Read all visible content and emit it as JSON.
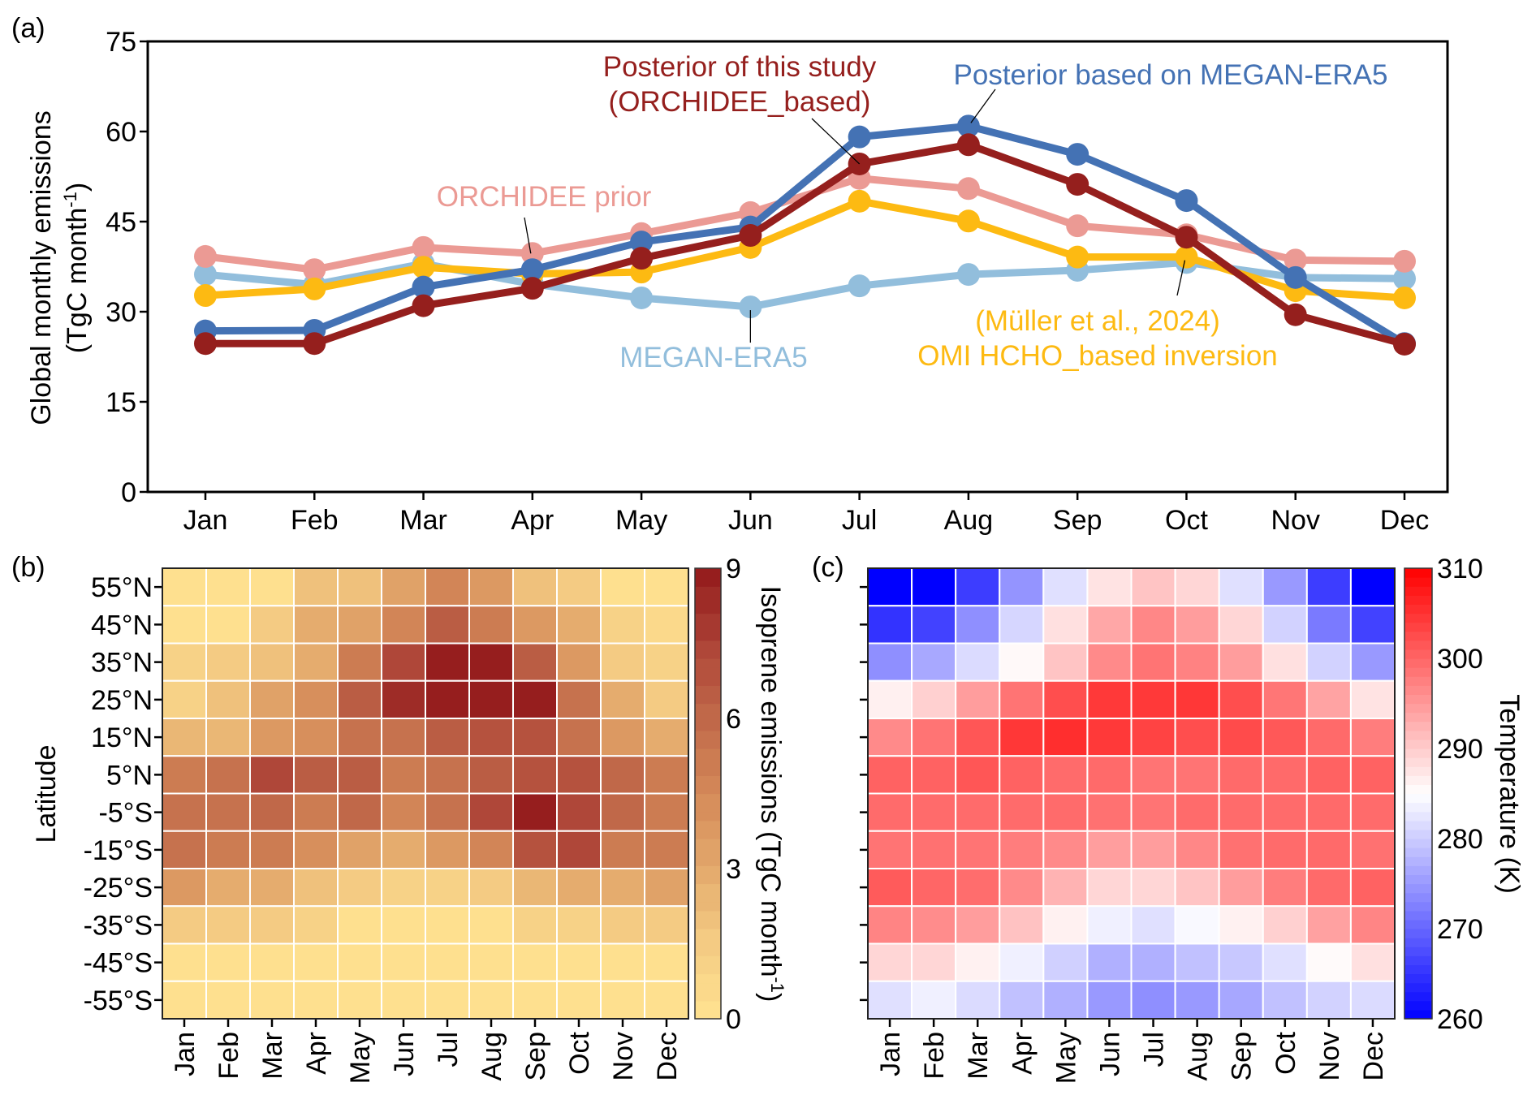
{
  "figure": {
    "panels": [
      "(a)",
      "(b)",
      "(c)"
    ]
  },
  "chart_data": [
    {
      "id": "a",
      "type": "line",
      "panel_label": "(a)",
      "title": "",
      "xlabel": "",
      "ylabel_line1": "Global monthly emissions",
      "ylabel_line2_prefix": "(TgC month",
      "ylabel_line2_sup": "-1",
      "ylabel_line2_suffix": ")",
      "ylim": [
        0,
        75
      ],
      "yticks": [
        0,
        15,
        30,
        45,
        60,
        75
      ],
      "grid": false,
      "categories": [
        "Jan",
        "Feb",
        "Mar",
        "Apr",
        "May",
        "Jun",
        "Jul",
        "Aug",
        "Sep",
        "Oct",
        "Nov",
        "Dec"
      ],
      "series": [
        {
          "name": "MEGAN-ERA5",
          "color": "#92BEDC",
          "values": [
            36.2,
            34.5,
            38.0,
            34.6,
            32.3,
            30.8,
            34.3,
            36.2,
            36.9,
            38.2,
            35.7,
            35.5
          ]
        },
        {
          "name": "ORCHIDEE prior",
          "color": "#EB9A94",
          "values": [
            39.2,
            37.0,
            40.7,
            39.7,
            43.0,
            46.5,
            52.2,
            50.5,
            44.3,
            42.8,
            38.6,
            38.4
          ]
        },
        {
          "name": "OMI HCHO_based inversion (Müller et al., 2024)",
          "color": "#FDBA12",
          "values": [
            32.7,
            33.8,
            37.4,
            36.3,
            36.6,
            40.7,
            48.4,
            45.1,
            39.1,
            39.1,
            33.5,
            32.3
          ]
        },
        {
          "name": "Posterior based on MEGAN-ERA5",
          "color": "#4472B4",
          "values": [
            26.8,
            26.9,
            34.1,
            37.0,
            41.6,
            44.1,
            59.1,
            60.9,
            56.2,
            48.5,
            35.7,
            24.7
          ]
        },
        {
          "name": "Posterior of this study (ORCHIDEE_based)",
          "color": "#951F1D",
          "values": [
            24.7,
            24.7,
            31.0,
            33.9,
            38.9,
            42.7,
            54.6,
            57.8,
            51.2,
            42.4,
            29.5,
            24.6
          ]
        }
      ],
      "annotations": [
        {
          "id": "post-study-1",
          "text": "Posterior of this study",
          "color": "#951F1D",
          "series": 4,
          "month": 6
        },
        {
          "id": "post-study-2",
          "text": "(ORCHIDEE_based)",
          "color": "#951F1D"
        },
        {
          "id": "post-megan",
          "text": "Posterior based on MEGAN-ERA5",
          "color": "#4472B4",
          "series": 3,
          "month": 7
        },
        {
          "id": "orchidee-prior",
          "text": "ORCHIDEE prior",
          "color": "#EB9A94",
          "series": 1,
          "month": 3
        },
        {
          "id": "megan-era5",
          "text": "MEGAN-ERA5",
          "color": "#92BEDC",
          "series": 0,
          "month": 5
        },
        {
          "id": "muller-1",
          "text": "(Müller et al., 2024)",
          "color": "#FDBA12",
          "series": 2,
          "month": 9
        },
        {
          "id": "muller-2",
          "text": "OMI HCHO_based inversion",
          "color": "#FDBA12"
        }
      ]
    },
    {
      "id": "b",
      "type": "heatmap",
      "panel_label": "(b)",
      "title": "",
      "xlabel": "",
      "ylabel": "Latitude",
      "x": [
        "Jan",
        "Feb",
        "Mar",
        "Apr",
        "May",
        "Jun",
        "Jul",
        "Aug",
        "Sep",
        "Oct",
        "Nov",
        "Dec"
      ],
      "y": [
        "55°N",
        "45°N",
        "35°N",
        "25°N",
        "15°N",
        "5°N",
        "-5°S",
        "-15°S",
        "-25°S",
        "-35°S",
        "-45°S",
        "-55°S"
      ],
      "values": [
        [
          0.3,
          0.3,
          0.4,
          1.8,
          2.0,
          3.5,
          4.5,
          3.6,
          2.1,
          1.6,
          0.4,
          0.3
        ],
        [
          0.3,
          0.4,
          1.6,
          2.7,
          3.4,
          4.9,
          6.4,
          5.3,
          3.6,
          2.8,
          1.0,
          0.5
        ],
        [
          0.9,
          1.6,
          2.0,
          3.0,
          5.0,
          7.2,
          9.0,
          9.0,
          6.6,
          3.7,
          1.5,
          0.9
        ],
        [
          1.3,
          1.8,
          3.5,
          4.4,
          6.5,
          8.5,
          9.0,
          9.0,
          9.0,
          5.5,
          3.0,
          1.4
        ],
        [
          2.5,
          2.6,
          4.0,
          4.4,
          5.4,
          5.5,
          6.3,
          6.9,
          7.0,
          5.8,
          4.0,
          2.9
        ],
        [
          5.3,
          5.4,
          7.2,
          6.6,
          6.5,
          5.2,
          5.7,
          6.5,
          6.9,
          7.0,
          5.9,
          5.2
        ],
        [
          5.5,
          5.5,
          6.0,
          5.3,
          6.0,
          4.8,
          5.8,
          7.5,
          8.6,
          7.6,
          6.0,
          5.3
        ],
        [
          5.6,
          5.1,
          5.1,
          4.4,
          3.4,
          3.0,
          3.6,
          4.8,
          7.0,
          7.3,
          5.3,
          5.0
        ],
        [
          3.6,
          3.0,
          3.0,
          2.2,
          1.7,
          1.0,
          1.0,
          1.6,
          2.5,
          3.0,
          3.0,
          3.2
        ],
        [
          1.6,
          1.6,
          1.5,
          0.9,
          0.4,
          0.4,
          0.4,
          0.4,
          0.9,
          1.0,
          1.4,
          1.5
        ],
        [
          0.3,
          0.3,
          0.3,
          0.3,
          0.3,
          0.3,
          0.3,
          0.3,
          0.3,
          0.3,
          0.3,
          0.3
        ],
        [
          0.3,
          0.3,
          0.3,
          0.3,
          0.3,
          0.3,
          0.3,
          0.3,
          0.3,
          0.3,
          0.3,
          0.3
        ]
      ],
      "colorbar": {
        "label_prefix": "Isoprene emissions (TgC month",
        "label_sup": "-1",
        "label_suffix": ")",
        "range": [
          0,
          9
        ],
        "ticks": [
          0,
          3,
          6,
          9
        ],
        "levels": 20,
        "colors": [
          "#FEE08F",
          "#F3CA82",
          "#E3A96C",
          "#D58A59",
          "#C26C4B",
          "#B0493A",
          "#961E1E"
        ]
      }
    },
    {
      "id": "c",
      "type": "heatmap",
      "panel_label": "(c)",
      "title": "",
      "xlabel": "",
      "ylabel": "",
      "x": [
        "Jan",
        "Feb",
        "Mar",
        "Apr",
        "May",
        "Jun",
        "Jul",
        "Aug",
        "Sep",
        "Oct",
        "Nov",
        "Dec"
      ],
      "y_rows": 12,
      "values": [
        [
          260.0,
          260.0,
          266.0,
          274.5,
          282.0,
          287.7,
          290.8,
          289.0,
          282.0,
          275.0,
          266.0,
          260.0
        ],
        [
          265.0,
          266.5,
          274.0,
          281.0,
          288.0,
          293.6,
          296.8,
          294.6,
          289.0,
          280.6,
          272.0,
          266.5
        ],
        [
          274.0,
          276.5,
          281.5,
          285.6,
          290.8,
          296.5,
          298.6,
          297.3,
          294.6,
          288.0,
          280.6,
          275.0
        ],
        [
          286.5,
          289.6,
          294.6,
          298.6,
          302.4,
          304.4,
          304.4,
          304.6,
          302.4,
          298.4,
          294.0,
          287.7
        ],
        [
          296.5,
          298.6,
          301.6,
          304.6,
          305.5,
          304.4,
          303.4,
          302.4,
          302.6,
          301.4,
          299.6,
          297.7
        ],
        [
          300.4,
          300.4,
          301.6,
          300.4,
          299.5,
          299.6,
          298.6,
          298.6,
          299.6,
          299.6,
          300.4,
          300.4
        ],
        [
          299.5,
          299.5,
          299.5,
          299.5,
          299.5,
          298.9,
          298.6,
          299.5,
          299.5,
          299.5,
          299.6,
          299.5
        ],
        [
          298.6,
          298.9,
          298.6,
          297.7,
          296.5,
          294.5,
          294.6,
          296.8,
          298.9,
          299.5,
          299.6,
          298.9
        ],
        [
          301.1,
          300.0,
          299.3,
          296.5,
          292.5,
          289.0,
          289.0,
          290.8,
          294.6,
          297.7,
          299.6,
          300.4
        ],
        [
          297.1,
          296.3,
          294.6,
          291.0,
          286.4,
          283.5,
          282.0,
          284.4,
          286.4,
          289.6,
          294.2,
          297.0
        ],
        [
          289.0,
          289.0,
          286.4,
          283.5,
          280.4,
          277.3,
          277.3,
          278.9,
          279.6,
          282.0,
          285.5,
          288.0
        ],
        [
          282.0,
          283.5,
          281.5,
          278.9,
          277.3,
          275.0,
          274.0,
          275.0,
          276.4,
          278.9,
          280.6,
          281.5
        ]
      ],
      "colorbar": {
        "label": "Temperature (K)",
        "range": [
          260,
          310
        ],
        "ticks": [
          260,
          270,
          280,
          290,
          300,
          310
        ],
        "center": 285,
        "colors": [
          "#0000FF",
          "#FFFFFF",
          "#FF0000"
        ]
      }
    }
  ]
}
